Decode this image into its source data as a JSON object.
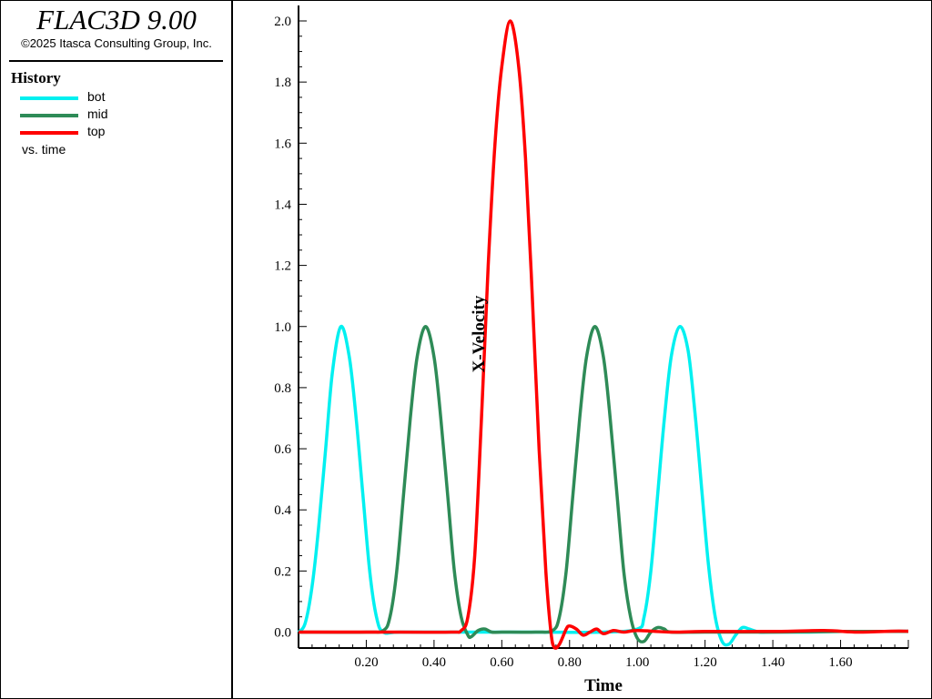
{
  "header": {
    "app_title": "FLAC3D 9.00",
    "copyright": "©2025 Itasca Consulting Group, Inc."
  },
  "legend": {
    "heading": "History",
    "entries": [
      {
        "label": "bot",
        "color": "#00f0f0"
      },
      {
        "label": "mid",
        "color": "#2e8b57"
      },
      {
        "label": "top",
        "color": "#ff0000"
      }
    ],
    "footer": "vs. time"
  },
  "chart_data": {
    "type": "line",
    "xlabel": "Time",
    "ylabel": "X-Velocity",
    "xlim": [
      0.0,
      1.8
    ],
    "ylim": [
      -0.05,
      2.05
    ],
    "x_ticks": [
      "0.20",
      "0.40",
      "0.60",
      "0.80",
      "1.00",
      "1.20",
      "1.40",
      "1.60"
    ],
    "y_ticks": [
      "0.0",
      "0.2",
      "0.4",
      "0.6",
      "0.8",
      "1.0",
      "1.2",
      "1.4",
      "1.6",
      "1.8",
      "2.0"
    ],
    "grid": false,
    "series": [
      {
        "name": "bot",
        "color": "#00f0f0",
        "points": [
          [
            0,
            0
          ],
          [
            0.02,
            0.03
          ],
          [
            0.04,
            0.15
          ],
          [
            0.06,
            0.35
          ],
          [
            0.08,
            0.6
          ],
          [
            0.1,
            0.85
          ],
          [
            0.125,
            1.0
          ],
          [
            0.15,
            0.9
          ],
          [
            0.17,
            0.7
          ],
          [
            0.19,
            0.45
          ],
          [
            0.21,
            0.2
          ],
          [
            0.23,
            0.05
          ],
          [
            0.25,
            0.0
          ],
          [
            0.3,
            0.0
          ],
          [
            0.5,
            0.0
          ],
          [
            0.7,
            0.0
          ],
          [
            0.9,
            0.0
          ],
          [
            1.0,
            0.01
          ],
          [
            1.02,
            0.05
          ],
          [
            1.04,
            0.2
          ],
          [
            1.06,
            0.45
          ],
          [
            1.08,
            0.7
          ],
          [
            1.1,
            0.9
          ],
          [
            1.125,
            1.0
          ],
          [
            1.15,
            0.92
          ],
          [
            1.17,
            0.72
          ],
          [
            1.19,
            0.47
          ],
          [
            1.21,
            0.22
          ],
          [
            1.23,
            0.05
          ],
          [
            1.25,
            -0.03
          ],
          [
            1.27,
            -0.04
          ],
          [
            1.29,
            -0.01
          ],
          [
            1.31,
            0.015
          ],
          [
            1.33,
            0.01
          ],
          [
            1.36,
            0.0
          ],
          [
            1.4,
            0.0
          ],
          [
            1.5,
            0.0
          ],
          [
            1.6,
            0.002
          ],
          [
            1.7,
            0.002
          ],
          [
            1.8,
            0.003
          ]
        ]
      },
      {
        "name": "mid",
        "color": "#2e8b57",
        "points": [
          [
            0,
            0
          ],
          [
            0.2,
            0.0
          ],
          [
            0.25,
            0.005
          ],
          [
            0.27,
            0.05
          ],
          [
            0.29,
            0.2
          ],
          [
            0.31,
            0.45
          ],
          [
            0.33,
            0.7
          ],
          [
            0.35,
            0.9
          ],
          [
            0.375,
            1.0
          ],
          [
            0.4,
            0.9
          ],
          [
            0.42,
            0.7
          ],
          [
            0.44,
            0.45
          ],
          [
            0.46,
            0.2
          ],
          [
            0.48,
            0.05
          ],
          [
            0.5,
            -0.01
          ],
          [
            0.51,
            -0.015
          ],
          [
            0.53,
            0.005
          ],
          [
            0.55,
            0.01
          ],
          [
            0.57,
            0.0
          ],
          [
            0.6,
            0.0
          ],
          [
            0.7,
            0.0
          ],
          [
            0.75,
            0.005
          ],
          [
            0.77,
            0.05
          ],
          [
            0.79,
            0.2
          ],
          [
            0.81,
            0.45
          ],
          [
            0.83,
            0.7
          ],
          [
            0.85,
            0.9
          ],
          [
            0.875,
            1.0
          ],
          [
            0.9,
            0.9
          ],
          [
            0.92,
            0.7
          ],
          [
            0.94,
            0.45
          ],
          [
            0.96,
            0.2
          ],
          [
            0.98,
            0.05
          ],
          [
            1.0,
            -0.02
          ],
          [
            1.02,
            -0.03
          ],
          [
            1.04,
            0.0
          ],
          [
            1.06,
            0.015
          ],
          [
            1.08,
            0.01
          ],
          [
            1.1,
            0.0
          ],
          [
            1.2,
            0.0
          ],
          [
            1.4,
            0.0
          ],
          [
            1.6,
            0.002
          ],
          [
            1.8,
            0.002
          ]
        ]
      },
      {
        "name": "top",
        "color": "#ff0000",
        "points": [
          [
            0,
            0
          ],
          [
            0.3,
            0.0
          ],
          [
            0.45,
            0.0
          ],
          [
            0.48,
            0.005
          ],
          [
            0.5,
            0.05
          ],
          [
            0.52,
            0.25
          ],
          [
            0.54,
            0.7
          ],
          [
            0.56,
            1.2
          ],
          [
            0.58,
            1.6
          ],
          [
            0.6,
            1.85
          ],
          [
            0.625,
            2.0
          ],
          [
            0.65,
            1.85
          ],
          [
            0.67,
            1.55
          ],
          [
            0.69,
            1.1
          ],
          [
            0.71,
            0.6
          ],
          [
            0.73,
            0.2
          ],
          [
            0.745,
            0.0
          ],
          [
            0.755,
            -0.05
          ],
          [
            0.77,
            -0.04
          ],
          [
            0.79,
            0.01
          ],
          [
            0.8,
            0.02
          ],
          [
            0.82,
            0.01
          ],
          [
            0.84,
            -0.01
          ],
          [
            0.86,
            0.0
          ],
          [
            0.88,
            0.01
          ],
          [
            0.9,
            -0.005
          ],
          [
            0.93,
            0.005
          ],
          [
            0.96,
            0.0
          ],
          [
            1.0,
            0.005
          ],
          [
            1.1,
            0.0
          ],
          [
            1.2,
            0.002
          ],
          [
            1.4,
            0.002
          ],
          [
            1.55,
            0.005
          ],
          [
            1.65,
            0.0
          ],
          [
            1.75,
            0.003
          ],
          [
            1.8,
            0.003
          ]
        ]
      }
    ]
  }
}
